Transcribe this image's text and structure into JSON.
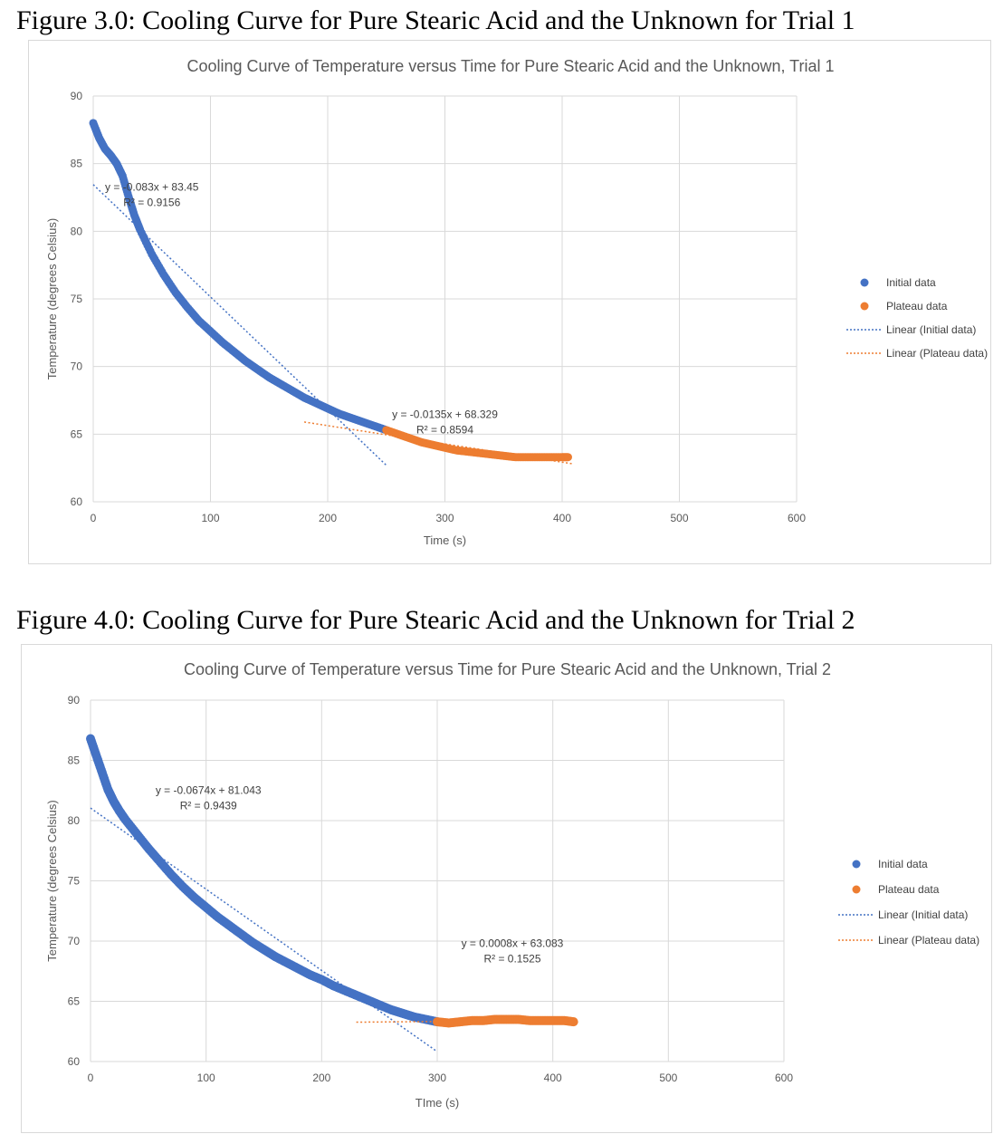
{
  "figures": [
    {
      "caption": "Figure 3.0: Cooling Curve for Pure Stearic Acid and the Unknown for Trial 1"
    },
    {
      "caption": "Figure 4.0: Cooling Curve for Pure Stearic Acid and the Unknown for Trial 2"
    }
  ],
  "colors": {
    "initial": "#4472C4",
    "plateau": "#ED7D31",
    "grid": "#d9d9d9",
    "text": "#595959"
  },
  "chart_data": [
    {
      "type": "scatter",
      "title": "Cooling Curve of Temperature versus Time for Pure Stearic Acid and the Unknown, Trial 1",
      "xlabel": "Time (s)",
      "ylabel": "Temperature (degrees Celsius)",
      "xlim": [
        0,
        600
      ],
      "ylim": [
        60,
        90
      ],
      "xticks": [
        0,
        100,
        200,
        300,
        400,
        500,
        600
      ],
      "yticks": [
        60,
        65,
        70,
        75,
        80,
        85,
        90
      ],
      "grid": true,
      "legend_position": "right",
      "series": [
        {
          "name": "Initial data",
          "kind": "points",
          "x": [
            0,
            5,
            10,
            15,
            20,
            25,
            30,
            35,
            40,
            50,
            60,
            70,
            80,
            90,
            100,
            110,
            120,
            130,
            140,
            150,
            160,
            170,
            180,
            190,
            200,
            210,
            220,
            230,
            240,
            250
          ],
          "y": [
            88.0,
            86.9,
            86.1,
            85.6,
            85.0,
            84.1,
            82.6,
            81.2,
            80.1,
            78.3,
            76.8,
            75.5,
            74.4,
            73.4,
            72.6,
            71.8,
            71.1,
            70.4,
            69.8,
            69.2,
            68.7,
            68.2,
            67.7,
            67.3,
            66.9,
            66.5,
            66.2,
            65.9,
            65.6,
            65.3
          ]
        },
        {
          "name": "Plateau data",
          "kind": "points",
          "x": [
            250,
            260,
            270,
            280,
            290,
            300,
            310,
            320,
            330,
            340,
            350,
            360,
            370,
            380,
            390,
            400,
            405
          ],
          "y": [
            65.3,
            65.0,
            64.7,
            64.4,
            64.2,
            64.0,
            63.8,
            63.7,
            63.6,
            63.5,
            63.4,
            63.3,
            63.3,
            63.3,
            63.3,
            63.3,
            63.3
          ]
        },
        {
          "name": "Linear (Initial data)",
          "kind": "trendline",
          "slope": -0.083,
          "intercept": 83.45,
          "x_range": [
            0,
            250
          ]
        },
        {
          "name": "Linear (Plateau data)",
          "kind": "trendline",
          "slope": -0.0135,
          "intercept": 68.329,
          "x_range": [
            180,
            410
          ]
        }
      ],
      "annotations": [
        {
          "line1": "y = -0.083x + 83.45",
          "line2": "R² = 0.9156",
          "x": 50,
          "y": 83.0
        },
        {
          "line1": "y = -0.0135x + 68.329",
          "line2": "R² = 0.8594",
          "x": 300,
          "y": 66.2
        }
      ]
    },
    {
      "type": "scatter",
      "title": "Cooling Curve of Temperature versus Time for Pure Stearic Acid and the Unknown, Trial 2",
      "xlabel": "TIme (s)",
      "ylabel": "Temperature (degrees Celsius)",
      "xlim": [
        0,
        600
      ],
      "ylim": [
        60,
        90
      ],
      "xticks": [
        0,
        100,
        200,
        300,
        400,
        500,
        600
      ],
      "yticks": [
        60,
        65,
        70,
        75,
        80,
        85,
        90
      ],
      "grid": true,
      "legend_position": "right",
      "series": [
        {
          "name": "Initial data",
          "kind": "points",
          "x": [
            0,
            5,
            10,
            15,
            20,
            25,
            30,
            40,
            50,
            60,
            70,
            80,
            90,
            100,
            110,
            120,
            130,
            140,
            150,
            160,
            170,
            180,
            190,
            200,
            210,
            220,
            230,
            240,
            250,
            260,
            270,
            280,
            290,
            300
          ],
          "y": [
            86.8,
            85.4,
            84.0,
            82.6,
            81.6,
            80.8,
            80.1,
            78.9,
            77.7,
            76.6,
            75.5,
            74.5,
            73.6,
            72.8,
            72.0,
            71.3,
            70.6,
            69.9,
            69.3,
            68.7,
            68.2,
            67.7,
            67.2,
            66.8,
            66.3,
            65.9,
            65.5,
            65.1,
            64.7,
            64.3,
            64.0,
            63.7,
            63.5,
            63.3
          ]
        },
        {
          "name": "Plateau data",
          "kind": "points",
          "x": [
            300,
            310,
            320,
            330,
            340,
            350,
            360,
            370,
            380,
            390,
            400,
            410,
            418
          ],
          "y": [
            63.3,
            63.2,
            63.3,
            63.4,
            63.4,
            63.5,
            63.5,
            63.5,
            63.4,
            63.4,
            63.4,
            63.4,
            63.3
          ]
        },
        {
          "name": "Linear (Initial data)",
          "kind": "trendline",
          "slope": -0.0674,
          "intercept": 81.043,
          "x_range": [
            0,
            300
          ]
        },
        {
          "name": "Linear (Plateau data)",
          "kind": "trendline",
          "slope": 0.0008,
          "intercept": 63.083,
          "x_range": [
            230,
            300
          ]
        }
      ],
      "annotations": [
        {
          "line1": "y = -0.0674x + 81.043",
          "line2": "R² = 0.9439",
          "x": 102,
          "y": 82.2
        },
        {
          "line1": "y = 0.0008x + 63.083",
          "line2": "R² = 0.1525",
          "x": 365,
          "y": 69.5
        }
      ]
    }
  ]
}
